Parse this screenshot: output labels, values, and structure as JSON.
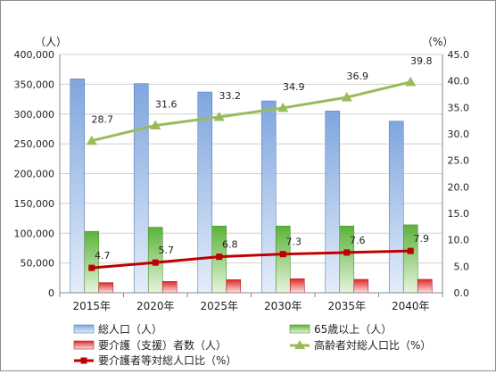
{
  "chart_data": {
    "type": "bar",
    "categories": [
      "2015年",
      "2020年",
      "2025年",
      "2030年",
      "2035年",
      "2040年"
    ],
    "left_axis_unit": "（人）",
    "right_axis_unit": "（%）",
    "left_ylim": [
      0,
      400000
    ],
    "right_ylim": [
      0,
      45
    ],
    "left_ticks": [
      "0",
      "50,000",
      "100,000",
      "150,000",
      "200,000",
      "250,000",
      "300,000",
      "350,000",
      "400,000"
    ],
    "right_ticks": [
      "0.0",
      "5.0",
      "10.0",
      "15.0",
      "20.0",
      "25.0",
      "30.0",
      "35.0",
      "40.0",
      "45.0"
    ],
    "grid": true,
    "legend_position": "bottom",
    "series": [
      {
        "name": "総人口（人）",
        "kind": "bar",
        "axis": "left",
        "color": "#6f99d6",
        "values": [
          359000,
          351000,
          337000,
          322000,
          305000,
          288000
        ]
      },
      {
        "name": "65歳以上（人）",
        "kind": "bar",
        "axis": "left",
        "color": "#6fbf47",
        "values": [
          103000,
          110000,
          112000,
          112000,
          112000,
          114000
        ]
      },
      {
        "name": "要介護（支援）者数（人）",
        "kind": "bar",
        "axis": "left",
        "color": "#e23030",
        "values": [
          17000,
          19000,
          22000,
          23500,
          22500,
          22500
        ]
      },
      {
        "name": "高齢者対総人口比（%）",
        "kind": "line",
        "axis": "right",
        "color": "#9bbb59",
        "marker": "triangle",
        "values": [
          28.7,
          31.6,
          33.2,
          34.9,
          36.9,
          39.8
        ],
        "labels": [
          "28.7",
          "31.6",
          "33.2",
          "34.9",
          "36.9",
          "39.8"
        ]
      },
      {
        "name": "要介護者等対総人口比（%）",
        "kind": "line",
        "axis": "right",
        "color": "#c00000",
        "marker": "square",
        "values": [
          4.7,
          5.7,
          6.8,
          7.3,
          7.6,
          7.9
        ],
        "labels": [
          "4.7",
          "5.7",
          "6.8",
          "7.3",
          "7.6",
          "7.9"
        ]
      }
    ]
  }
}
